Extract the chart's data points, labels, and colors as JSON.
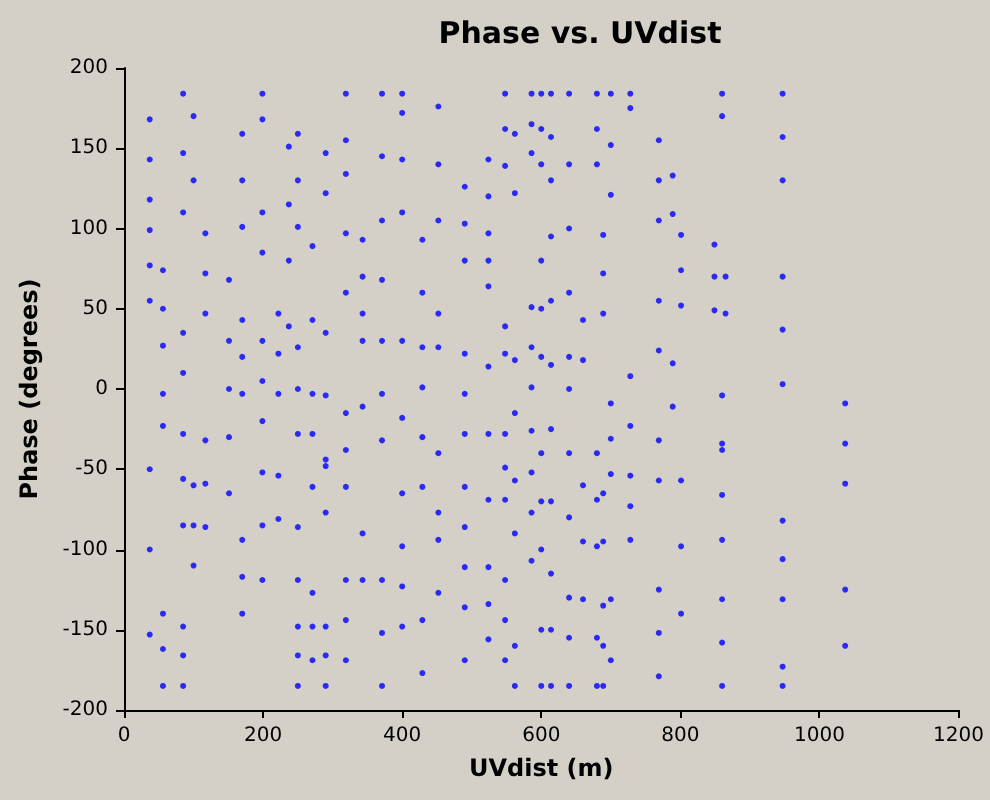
{
  "chart_data": {
    "type": "scatter",
    "title": "Phase vs. UVdist",
    "xlabel": "UVdist (m)",
    "ylabel": "Phase (degrees)",
    "xlim": [
      0,
      1200
    ],
    "xticks": [
      0,
      200,
      400,
      600,
      800,
      1000,
      1200
    ],
    "ylim": [
      -200,
      200
    ],
    "yticks": [
      -200,
      -150,
      -100,
      -50,
      0,
      50,
      100,
      150,
      200
    ],
    "grid": false,
    "marker": "circle",
    "series": [
      {
        "color": "#0000ff",
        "x": [
          37,
          37,
          37,
          37,
          37,
          37,
          37,
          37,
          37
        ],
        "values": [
          168,
          143,
          118,
          99,
          77,
          55,
          -50,
          -100,
          -153
        ]
      },
      {
        "color": "#0000ff",
        "x": [
          56,
          56,
          56,
          56,
          56,
          56,
          56,
          56
        ],
        "values": [
          74,
          50,
          27,
          -3,
          -23,
          -140,
          -162,
          -185
        ]
      },
      {
        "color": "#0000ff",
        "x": [
          85,
          85,
          85,
          85,
          85,
          85,
          85,
          85,
          85,
          85,
          85
        ],
        "values": [
          184,
          147,
          110,
          35,
          10,
          -28,
          -56,
          -85,
          -148,
          -166,
          -185
        ]
      },
      {
        "color": "#0000ff",
        "x": [
          100,
          100,
          100,
          100,
          100
        ],
        "values": [
          170,
          130,
          -60,
          -85,
          -110
        ]
      },
      {
        "color": "#0000ff",
        "x": [
          117,
          117,
          117,
          117,
          117,
          117
        ],
        "values": [
          97,
          72,
          47,
          -32,
          -59,
          -86
        ]
      },
      {
        "color": "#0000ff",
        "x": [
          151,
          151,
          151,
          151,
          151
        ],
        "values": [
          68,
          30,
          0,
          -30,
          -65
        ]
      },
      {
        "color": "#0000ff",
        "x": [
          170,
          170,
          170,
          170,
          170,
          170,
          170,
          170,
          170
        ],
        "values": [
          159,
          130,
          101,
          43,
          20,
          -3,
          -94,
          -117,
          -140
        ]
      },
      {
        "color": "#0000ff",
        "x": [
          199,
          199,
          199,
          199,
          199,
          199,
          199,
          199,
          199,
          199
        ],
        "values": [
          184,
          168,
          110,
          85,
          30,
          5,
          -20,
          -52,
          -85,
          -119
        ]
      },
      {
        "color": "#0000ff",
        "x": [
          222,
          222,
          222,
          222,
          222
        ],
        "values": [
          47,
          22,
          -3,
          -54,
          -81
        ]
      },
      {
        "color": "#0000ff",
        "x": [
          237,
          237,
          237,
          237
        ],
        "values": [
          151,
          115,
          80,
          39
        ]
      },
      {
        "color": "#0000ff",
        "x": [
          250,
          250,
          250,
          250,
          250,
          250,
          250,
          250,
          250,
          250,
          250
        ],
        "values": [
          159,
          130,
          101,
          26,
          0,
          -28,
          -86,
          -119,
          -148,
          -166,
          -185
        ]
      },
      {
        "color": "#0000ff",
        "x": [
          271,
          271,
          271,
          271,
          271,
          271,
          271,
          271
        ],
        "values": [
          89,
          43,
          -3,
          -28,
          -61,
          -127,
          -148,
          -169
        ]
      },
      {
        "color": "#0000ff",
        "x": [
          290,
          290,
          290,
          290,
          290,
          290,
          290,
          290,
          290,
          290
        ],
        "values": [
          147,
          122,
          35,
          -4,
          -44,
          -48,
          -77,
          -148,
          -166,
          -185
        ]
      },
      {
        "color": "#0000ff",
        "x": [
          319,
          319,
          319,
          319,
          319,
          319,
          319,
          319,
          319,
          319,
          319
        ],
        "values": [
          184,
          155,
          134,
          97,
          60,
          -15,
          -38,
          -61,
          -119,
          -144,
          -169
        ]
      },
      {
        "color": "#0000ff",
        "x": [
          343,
          343,
          343,
          343,
          343,
          343,
          343
        ],
        "values": [
          93,
          70,
          47,
          30,
          -11,
          -90,
          -119
        ]
      },
      {
        "color": "#0000ff",
        "x": [
          371,
          371,
          371,
          371,
          371,
          371,
          371,
          371,
          371,
          371
        ],
        "values": [
          184,
          145,
          105,
          68,
          30,
          -3,
          -32,
          -119,
          -152,
          -185
        ]
      },
      {
        "color": "#0000ff",
        "x": [
          400,
          400,
          400,
          400,
          400,
          400,
          400,
          400,
          400,
          400
        ],
        "values": [
          184,
          172,
          143,
          110,
          30,
          -18,
          -65,
          -98,
          -123,
          -148
        ]
      },
      {
        "color": "#0000ff",
        "x": [
          429,
          429,
          429,
          429,
          429,
          429,
          429,
          429
        ],
        "values": [
          93,
          60,
          26,
          1,
          -30,
          -61,
          -144,
          -177
        ]
      },
      {
        "color": "#0000ff",
        "x": [
          452,
          452,
          452,
          452,
          452,
          452,
          452,
          452,
          452
        ],
        "values": [
          176,
          140,
          105,
          47,
          26,
          -40,
          -77,
          -94,
          -127
        ]
      },
      {
        "color": "#0000ff",
        "x": [
          490,
          490,
          490,
          490,
          490,
          490,
          490,
          490,
          490,
          490,
          490
        ],
        "values": [
          126,
          103,
          80,
          22,
          -3,
          -28,
          -61,
          -86,
          -111,
          -136,
          -169
        ]
      },
      {
        "color": "#0000ff",
        "x": [
          524,
          524,
          524,
          524,
          524,
          524,
          524,
          524,
          524,
          524,
          524
        ],
        "values": [
          143,
          120,
          97,
          80,
          64,
          14,
          -28,
          -69,
          -111,
          -134,
          -156
        ]
      },
      {
        "color": "#0000ff",
        "x": [
          548,
          548,
          548,
          548,
          548,
          548,
          548,
          548,
          548,
          548,
          548
        ],
        "values": [
          184,
          162,
          139,
          39,
          22,
          -28,
          -49,
          -69,
          -119,
          -144,
          -169
        ]
      },
      {
        "color": "#0000ff",
        "x": [
          562,
          562,
          562,
          562,
          562,
          562,
          562,
          562
        ],
        "values": [
          159,
          122,
          18,
          -15,
          -57,
          -90,
          -160,
          -185
        ]
      },
      {
        "color": "#0000ff",
        "x": [
          586,
          586,
          586,
          586,
          586,
          586,
          586,
          586,
          586,
          586
        ],
        "values": [
          184,
          165,
          147,
          51,
          26,
          1,
          -26,
          -52,
          -77,
          -107
        ]
      },
      {
        "color": "#0000ff",
        "x": [
          600,
          600,
          600,
          600,
          600,
          600,
          600,
          600,
          600,
          600,
          600
        ],
        "values": [
          184,
          162,
          140,
          80,
          50,
          20,
          -40,
          -70,
          -100,
          -150,
          -185
        ]
      },
      {
        "color": "#0000ff",
        "x": [
          614,
          614,
          614,
          614,
          614,
          614,
          614,
          614,
          614,
          614,
          614
        ],
        "values": [
          184,
          157,
          130,
          95,
          55,
          15,
          -25,
          -70,
          -115,
          -150,
          -185
        ]
      },
      {
        "color": "#0000ff",
        "x": [
          640,
          640,
          640,
          640,
          640,
          640,
          640,
          640,
          640,
          640,
          640
        ],
        "values": [
          184,
          140,
          100,
          60,
          20,
          0,
          -40,
          -80,
          -130,
          -155,
          -185
        ]
      },
      {
        "color": "#0000ff",
        "x": [
          660,
          660,
          660,
          660,
          660
        ],
        "values": [
          43,
          18,
          -60,
          -95,
          -131
        ]
      },
      {
        "color": "#0000ff",
        "x": [
          680,
          680,
          680,
          680,
          680,
          680,
          680,
          680
        ],
        "values": [
          184,
          162,
          140,
          -40,
          -69,
          -98,
          -155,
          -185
        ]
      },
      {
        "color": "#0000ff",
        "x": [
          689,
          689,
          689,
          689,
          689,
          689,
          689,
          689
        ],
        "values": [
          96,
          72,
          47,
          -65,
          -95,
          -135,
          -160,
          -185
        ]
      },
      {
        "color": "#0000ff",
        "x": [
          700,
          700,
          700,
          700,
          700,
          700,
          700,
          700
        ],
        "values": [
          184,
          152,
          121,
          -9,
          -31,
          -53,
          -131,
          -169
        ]
      },
      {
        "color": "#0000ff",
        "x": [
          728,
          728,
          728,
          728,
          728,
          728,
          728
        ],
        "values": [
          184,
          175,
          8,
          -23,
          -54,
          -73,
          -94
        ]
      },
      {
        "color": "#0000ff",
        "x": [
          769,
          769,
          769,
          769,
          769,
          769,
          769,
          769,
          769,
          769
        ],
        "values": [
          155,
          130,
          105,
          55,
          24,
          -32,
          -57,
          -125,
          -152,
          -179
        ]
      },
      {
        "color": "#0000ff",
        "x": [
          789,
          789,
          789,
          789
        ],
        "values": [
          133,
          109,
          16,
          -11
        ]
      },
      {
        "color": "#0000ff",
        "x": [
          801,
          801,
          801,
          801,
          801,
          801
        ],
        "values": [
          96,
          74,
          52,
          -57,
          -98,
          -140
        ]
      },
      {
        "color": "#0000ff",
        "x": [
          849,
          849,
          849
        ],
        "values": [
          90,
          70,
          49
        ]
      },
      {
        "color": "#0000ff",
        "x": [
          860,
          860,
          860,
          860,
          860,
          860,
          860,
          860,
          860,
          860
        ],
        "values": [
          184,
          170,
          -4,
          -34,
          -38,
          -66,
          -94,
          -131,
          -158,
          -185
        ]
      },
      {
        "color": "#0000ff",
        "x": [
          865,
          865
        ],
        "values": [
          70,
          47
        ]
      },
      {
        "color": "#0000ff",
        "x": [
          947,
          947,
          947,
          947,
          947,
          947,
          947,
          947,
          947,
          947,
          947
        ],
        "values": [
          184,
          157,
          130,
          70,
          37,
          3,
          -82,
          -106,
          -131,
          -173,
          -185
        ]
      },
      {
        "color": "#0000ff",
        "x": [
          1037,
          1037,
          1037,
          1037,
          1037
        ],
        "values": [
          -9,
          -34,
          -59,
          -125,
          -160
        ]
      }
    ]
  }
}
